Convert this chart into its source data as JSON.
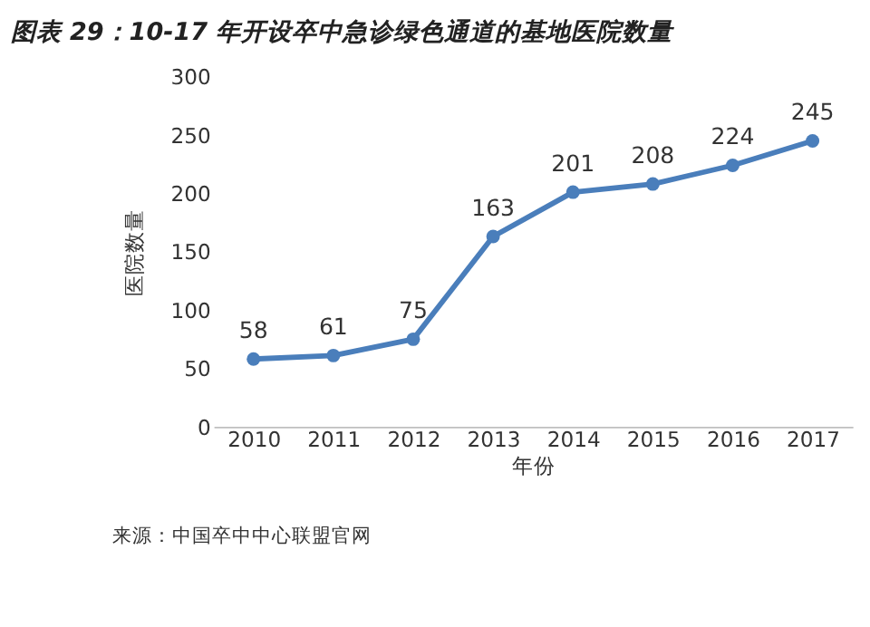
{
  "chart_data": {
    "type": "line",
    "title": "图表 29：10-17 年开设卒中急诊绿色通道的基地医院数量",
    "xlabel": "年份",
    "ylabel": "医院数量",
    "categories": [
      "2010",
      "2011",
      "2012",
      "2013",
      "2014",
      "2015",
      "2016",
      "2017"
    ],
    "series": [
      {
        "color": "#4a7ebb",
        "values": [
          58,
          61,
          75,
          163,
          201,
          208,
          224,
          245
        ]
      }
    ],
    "ylim": [
      0,
      300
    ],
    "yticks": [
      0,
      50,
      100,
      150,
      200,
      250,
      300
    ],
    "data_labels": true,
    "marker": "circle",
    "line_style": "solid",
    "grid": false,
    "annotations": [
      "来源：中国卒中中心联盟官网"
    ]
  }
}
